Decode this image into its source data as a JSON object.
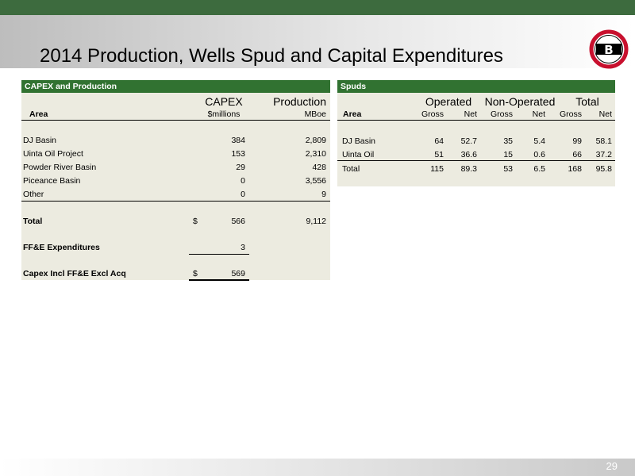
{
  "slide": {
    "title": "2014 Production, Wells Spud and Capital Expenditures",
    "page_number": "29",
    "logo_letter": "B",
    "colors": {
      "header_green": "#317231",
      "top_bar": "#3d6b3e",
      "panel_bg": "#ecebe0",
      "logo_red": "#c8102e"
    }
  },
  "capex": {
    "heading": "CAPEX and Production",
    "col_capex": "CAPEX",
    "col_production": "Production",
    "hdr_area": "Area",
    "hdr_unit_capex": "$millions",
    "hdr_unit_prod": "MBoe",
    "rows": [
      {
        "area": "DJ Basin",
        "capex": "384",
        "production": "2,809"
      },
      {
        "area": "Uinta Oil Project",
        "capex": "153",
        "production": "2,310"
      },
      {
        "area": "Powder River Basin",
        "capex": "29",
        "production": "428"
      },
      {
        "area": "Piceance Basin",
        "capex": "0",
        "production": "3,556"
      },
      {
        "area": "Other",
        "capex": "0",
        "production": "9"
      }
    ],
    "total": {
      "label": "Total",
      "currency": "$",
      "capex": "566",
      "production": "9,112"
    },
    "ffe": {
      "label": "FF&E Expenditures",
      "capex": "3"
    },
    "incl": {
      "label": "Capex Incl FF&E Excl Acq",
      "currency": "$",
      "capex": "569"
    }
  },
  "spuds": {
    "heading": "Spuds",
    "groups": {
      "operated": "Operated",
      "non_operated": "Non-Operated",
      "total": "Total"
    },
    "hdr_area": "Area",
    "hdr_gross": "Gross",
    "hdr_net": "Net",
    "rows": [
      {
        "area": "DJ Basin",
        "op_gross": "64",
        "op_net": "52.7",
        "nonop_gross": "35",
        "nonop_net": "5.4",
        "tot_gross": "99",
        "tot_net": "58.1"
      },
      {
        "area": "Uinta Oil",
        "op_gross": "51",
        "op_net": "36.6",
        "nonop_gross": "15",
        "nonop_net": "0.6",
        "tot_gross": "66",
        "tot_net": "37.2"
      },
      {
        "area": "Total",
        "op_gross": "115",
        "op_net": "89.3",
        "nonop_gross": "53",
        "nonop_net": "6.5",
        "tot_gross": "168",
        "tot_net": "95.8"
      }
    ]
  }
}
